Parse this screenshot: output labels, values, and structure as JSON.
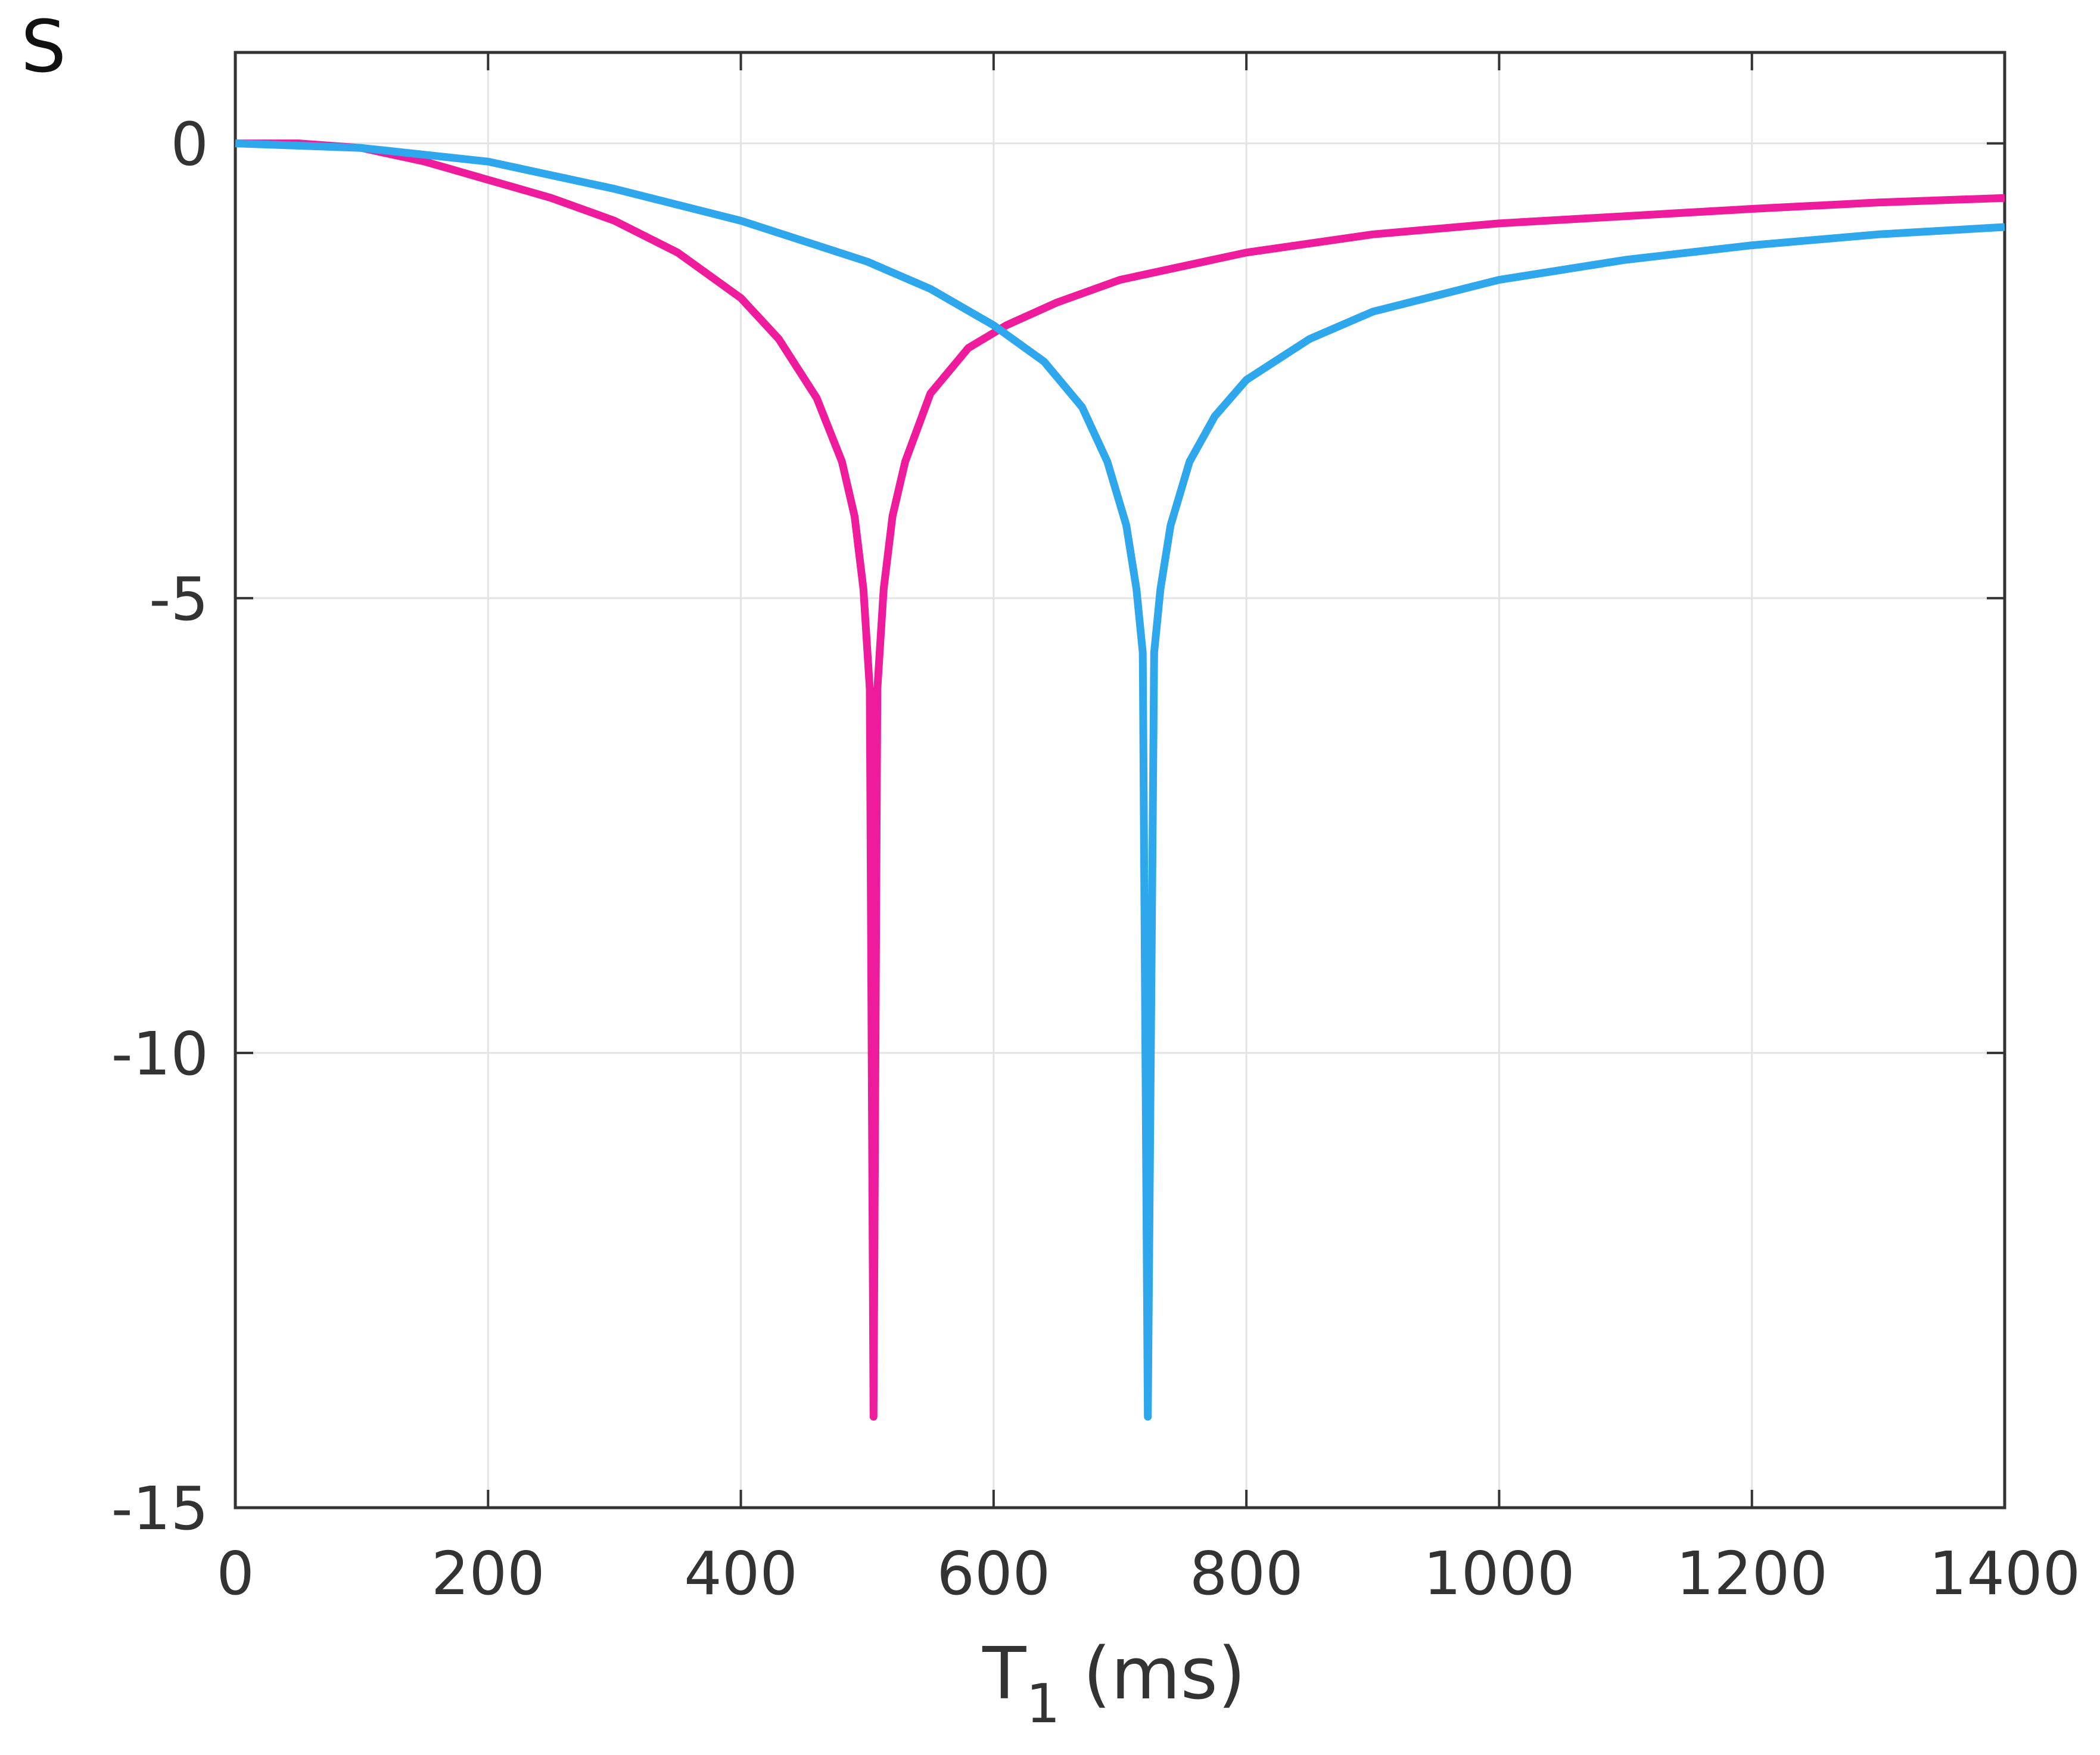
{
  "panel_label": "S",
  "chart_data": {
    "type": "line",
    "title": "",
    "xlabel": {
      "main": "T",
      "sub": "1",
      "rest": " (ms)"
    },
    "ylabel": "",
    "xlim": [
      0,
      1400
    ],
    "ylim": [
      -15,
      1
    ],
    "xticks": [
      0,
      200,
      400,
      600,
      800,
      1000,
      1200,
      1400
    ],
    "yticks": [
      0,
      -5,
      -10,
      -15
    ],
    "xtick_labels": [
      "0",
      "200",
      "400",
      "600",
      "800",
      "1000",
      "1200",
      "1400"
    ],
    "ytick_labels": [
      "0",
      "-5",
      "-10",
      "-15"
    ],
    "grid": true,
    "legend": "none",
    "series": [
      {
        "color": "#ee1c9c",
        "x": [
          0,
          50,
          100,
          150,
          200,
          250,
          300,
          350,
          400,
          430,
          460,
          480,
          490,
          497,
          502,
          505,
          508,
          513,
          520,
          530,
          550,
          580,
          610,
          650,
          700,
          800,
          900,
          1000,
          1100,
          1200,
          1300,
          1400
        ],
        "y": [
          0,
          0,
          -0.05,
          -0.2,
          -0.4,
          -0.6,
          -0.85,
          -1.2,
          -1.7,
          -2.15,
          -2.8,
          -3.5,
          -4.1,
          -4.9,
          -6.0,
          -14.0,
          -6.0,
          -4.9,
          -4.1,
          -3.5,
          -2.75,
          -2.25,
          -2.0,
          -1.75,
          -1.5,
          -1.2,
          -1.0,
          -0.88,
          -0.8,
          -0.72,
          -0.65,
          -0.6
        ]
      },
      {
        "color": "#2ea7ec",
        "x": [
          0,
          100,
          200,
          300,
          400,
          500,
          550,
          600,
          640,
          670,
          690,
          705,
          713,
          718,
          722,
          727,
          732,
          740,
          755,
          775,
          800,
          850,
          900,
          1000,
          1100,
          1200,
          1300,
          1400
        ],
        "y": [
          0,
          -0.05,
          -0.2,
          -0.5,
          -0.85,
          -1.3,
          -1.6,
          -2.0,
          -2.4,
          -2.9,
          -3.5,
          -4.2,
          -4.9,
          -5.6,
          -14.0,
          -5.6,
          -4.9,
          -4.2,
          -3.5,
          -3.0,
          -2.6,
          -2.15,
          -1.85,
          -1.5,
          -1.28,
          -1.12,
          -1.0,
          -0.92
        ]
      }
    ]
  }
}
